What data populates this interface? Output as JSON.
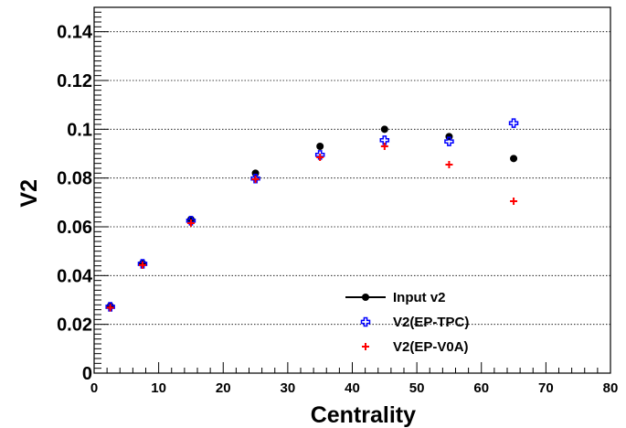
{
  "chart_data": {
    "type": "scatter",
    "xlabel": "Centrality",
    "ylabel": "V2",
    "xlim": [
      0,
      80
    ],
    "ylim": [
      0,
      0.15
    ],
    "x_ticks": [
      "0",
      "10",
      "20",
      "30",
      "40",
      "50",
      "60",
      "70",
      "80"
    ],
    "y_ticks": [
      "0",
      "0.02",
      "0.04",
      "0.06",
      "0.08",
      "0.1",
      "0.12",
      "0.14"
    ],
    "grid": "horizontal dotted at major y ticks",
    "legend_position": "bottom-right",
    "series": [
      {
        "name": "Input v2",
        "marker": "filled-circle",
        "color": "#000000",
        "x": [
          2.5,
          7.5,
          15,
          25,
          35,
          45,
          55,
          65
        ],
        "y": [
          0.0275,
          0.045,
          0.063,
          0.082,
          0.093,
          0.1,
          0.097,
          0.088
        ]
      },
      {
        "name": "V2(EP-TPC)",
        "marker": "open-cross",
        "color": "#0000ff",
        "x": [
          2.5,
          7.5,
          15,
          25,
          35,
          45,
          55,
          65
        ],
        "y": [
          0.0272,
          0.0448,
          0.0625,
          0.0798,
          0.0895,
          0.0955,
          0.095,
          0.1025
        ]
      },
      {
        "name": "V2(EP-V0A)",
        "marker": "plus",
        "color": "#ff0000",
        "x": [
          2.5,
          7.5,
          15,
          25,
          35,
          45,
          55,
          65
        ],
        "y": [
          0.0268,
          0.0443,
          0.0615,
          0.0795,
          0.0885,
          0.093,
          0.0855,
          0.0705
        ]
      }
    ]
  }
}
